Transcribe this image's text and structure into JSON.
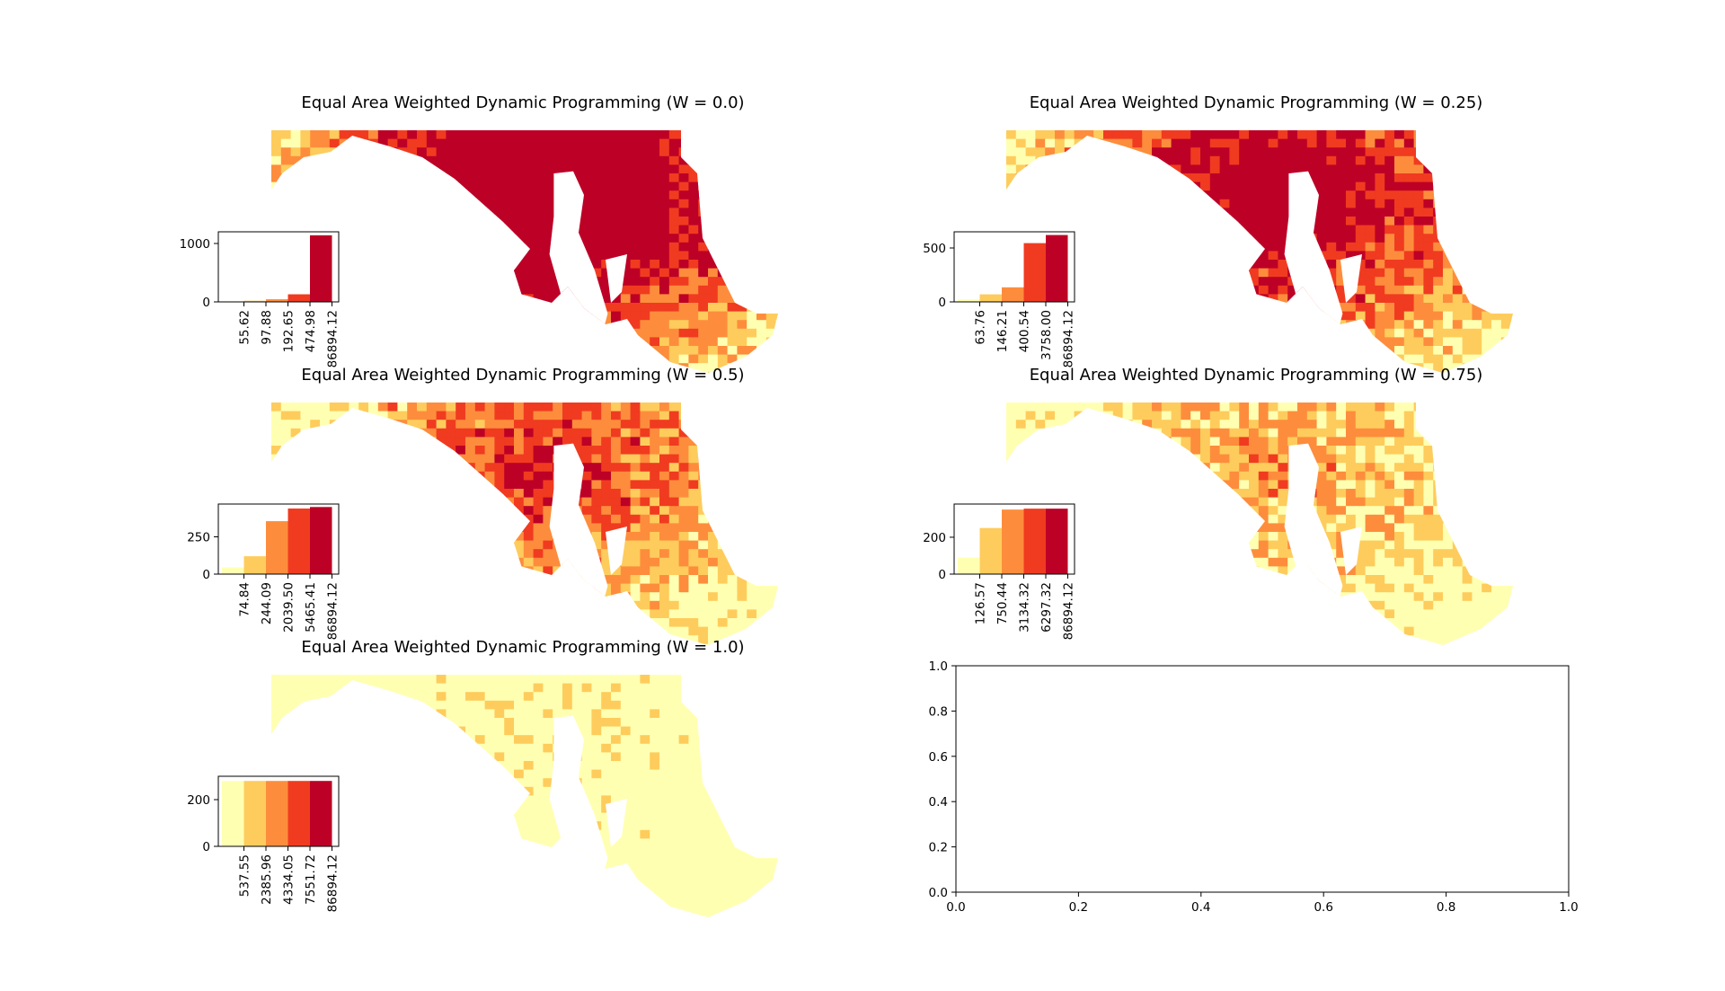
{
  "palette": [
    "#ffffb2",
    "#fecc5c",
    "#fd8d3c",
    "#f03b20",
    "#bd0026"
  ],
  "map_background_colors": {
    "low": "#ffffb2",
    "high": "#bd0026"
  },
  "chart_data": [
    {
      "type": "choropleth_map_with_histogram",
      "title": "Equal Area Weighted Dynamic Programming (W = 0.0)",
      "histogram": {
        "type": "bar",
        "categories": [
          "55.62",
          "97.88",
          "192.65",
          "474.98",
          "86894.12"
        ],
        "values": [
          8,
          20,
          45,
          130,
          1140
        ],
        "yticks": [
          "0",
          "1000"
        ],
        "ylim": [
          0,
          1200
        ]
      }
    },
    {
      "type": "choropleth_map_with_histogram",
      "title": "Equal Area Weighted Dynamic Programming (W = 0.25)",
      "histogram": {
        "type": "bar",
        "categories": [
          "63.76",
          "146.21",
          "400.54",
          "3758.00",
          "86894.12"
        ],
        "values": [
          25,
          70,
          135,
          545,
          620
        ],
        "yticks": [
          "0",
          "500"
        ],
        "ylim": [
          0,
          650
        ]
      }
    },
    {
      "type": "choropleth_map_with_histogram",
      "title": "Equal Area Weighted Dynamic Programming (W = 0.5)",
      "histogram": {
        "type": "bar",
        "categories": [
          "74.84",
          "244.09",
          "2039.50",
          "5465.41",
          "86894.12"
        ],
        "values": [
          45,
          120,
          355,
          440,
          450
        ],
        "yticks": [
          "0",
          "250"
        ],
        "ylim": [
          0,
          470
        ]
      }
    },
    {
      "type": "choropleth_map_with_histogram",
      "title": "Equal Area Weighted Dynamic Programming (W = 0.75)",
      "histogram": {
        "type": "bar",
        "categories": [
          "126.57",
          "750.44",
          "3134.32",
          "6297.32",
          "86894.12"
        ],
        "values": [
          90,
          250,
          350,
          355,
          355
        ],
        "yticks": [
          "0",
          "200"
        ],
        "ylim": [
          0,
          380
        ]
      }
    },
    {
      "type": "choropleth_map_with_histogram",
      "title": "Equal Area Weighted Dynamic Programming (W = 1.0)",
      "histogram": {
        "type": "bar",
        "categories": [
          "537.55",
          "2385.96",
          "4334.05",
          "7551.72",
          "86894.12"
        ],
        "values": [
          280,
          280,
          280,
          280,
          280
        ],
        "yticks": [
          "0",
          "200"
        ],
        "ylim": [
          0,
          300
        ]
      }
    },
    {
      "type": "empty",
      "title": "",
      "xlim": [
        0,
        1
      ],
      "ylim": [
        0,
        1
      ],
      "xticks": [
        "0.0",
        "0.2",
        "0.4",
        "0.6",
        "0.8",
        "1.0"
      ],
      "yticks": [
        "0.0",
        "0.2",
        "0.4",
        "0.6",
        "0.8",
        "1.0"
      ]
    }
  ]
}
